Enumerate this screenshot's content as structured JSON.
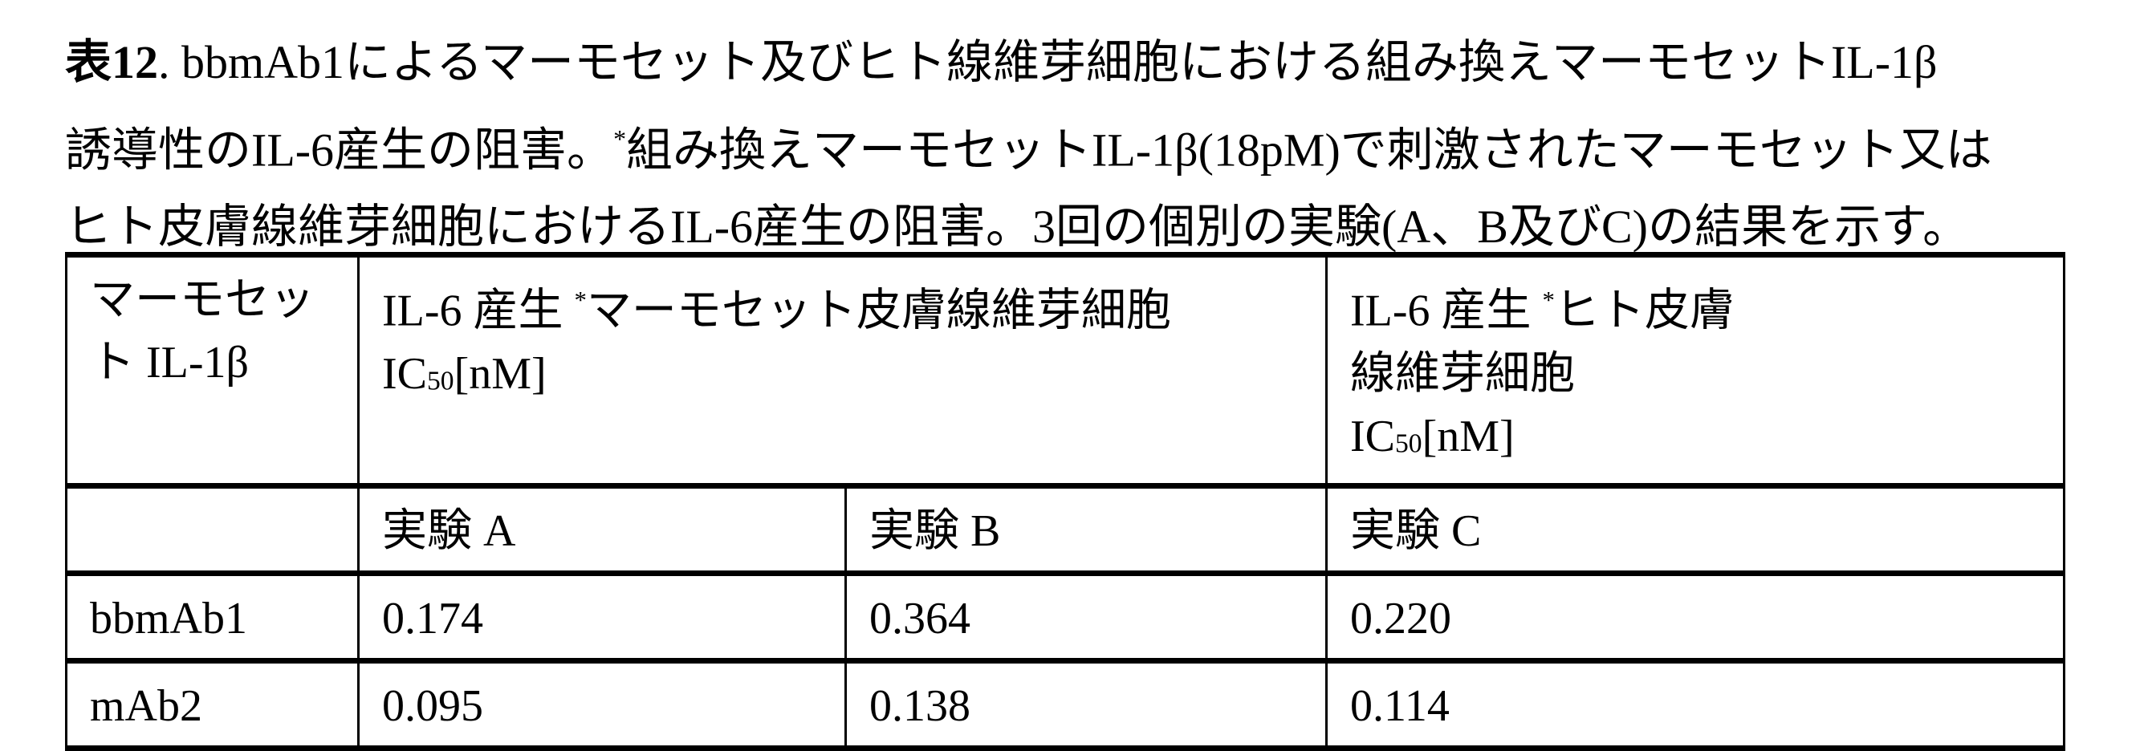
{
  "caption": {
    "label": "表12",
    "line1": ". bbmAb1によるマーモセット及びヒト線維芽細胞における組み換えマーモセットIL-1β",
    "line2a": "誘導性のIL-6産生の阻害。",
    "line2_asterisk": "*",
    "line2b": "組み換えマーモセットIL-1β(18pM)で刺激されたマーモセット又は",
    "line3": "ヒト皮膚線維芽細胞におけるIL-6産生の阻害。3回の個別の実験(A、B及びC)の結果を示す。"
  },
  "table": {
    "header": {
      "col1": "マーモセット IL-1β",
      "col2_prefix": "IL-6 産生 ",
      "col2_asterisk": "*",
      "col2_text": "マーモセット皮膚線維芽細胞",
      "col2_unit_main": "IC",
      "col2_unit_sub": "50",
      "col2_unit_rest": "[nM]",
      "col3_prefix": "IL-6 産生 ",
      "col3_asterisk": "*",
      "col3_text1": "ヒト皮膚",
      "col3_text2": "線維芽細胞",
      "col3_unit_main": "IC",
      "col3_unit_sub": "50",
      "col3_unit_rest": "[nM]"
    },
    "subheader": [
      "",
      "実験 A",
      "実験 B",
      "実験 C"
    ],
    "rows": [
      [
        "bbmAb1",
        "0.174",
        "0.364",
        "0.220"
      ],
      [
        "mAb2",
        "0.095",
        "0.138",
        "0.114"
      ]
    ]
  }
}
